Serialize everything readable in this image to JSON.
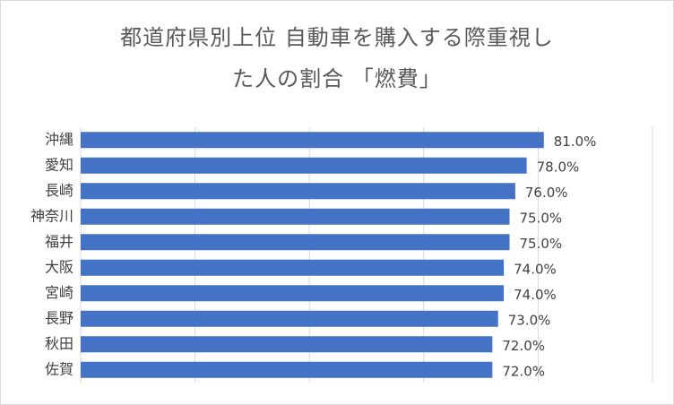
{
  "chart_data": {
    "type": "bar",
    "orientation": "horizontal",
    "title_lines": [
      "都道府県別上位 自動車を購入する際重視し",
      "た人の割合 「燃費」"
    ],
    "categories": [
      "沖縄",
      "愛知",
      "長崎",
      "神奈川",
      "福井",
      "大阪",
      "宮崎",
      "長野",
      "秋田",
      "佐賀"
    ],
    "values": [
      81.0,
      78.0,
      76.0,
      75.0,
      75.0,
      74.0,
      74.0,
      73.0,
      72.0,
      72.0
    ],
    "labels": [
      "81.0%",
      "78.0%",
      "76.0%",
      "75.0%",
      "75.0%",
      "74.0%",
      "74.0%",
      "73.0%",
      "72.0%",
      "72.0%"
    ],
    "xlim": [
      0,
      100
    ],
    "grid": true,
    "legend": "none",
    "bar_color": "#4472C4"
  }
}
